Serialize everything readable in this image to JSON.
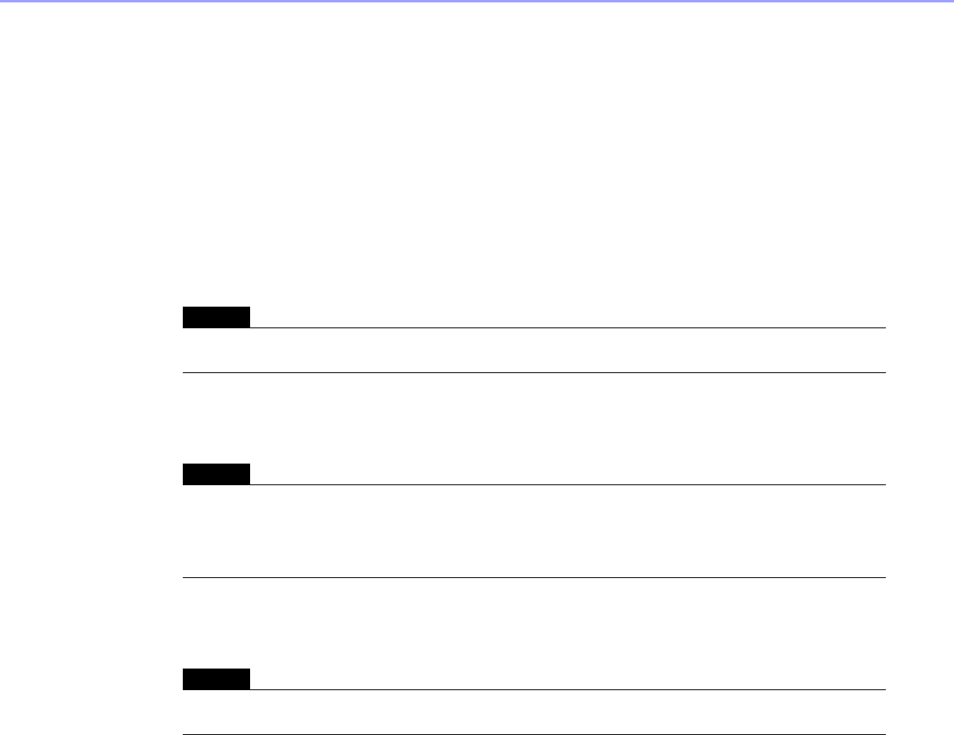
{
  "colors": {
    "top_bar": "#a0a0ff",
    "tab": "#000000"
  },
  "sections": [
    {
      "tab_label": ""
    },
    {
      "tab_label": ""
    },
    {
      "tab_label": ""
    }
  ]
}
